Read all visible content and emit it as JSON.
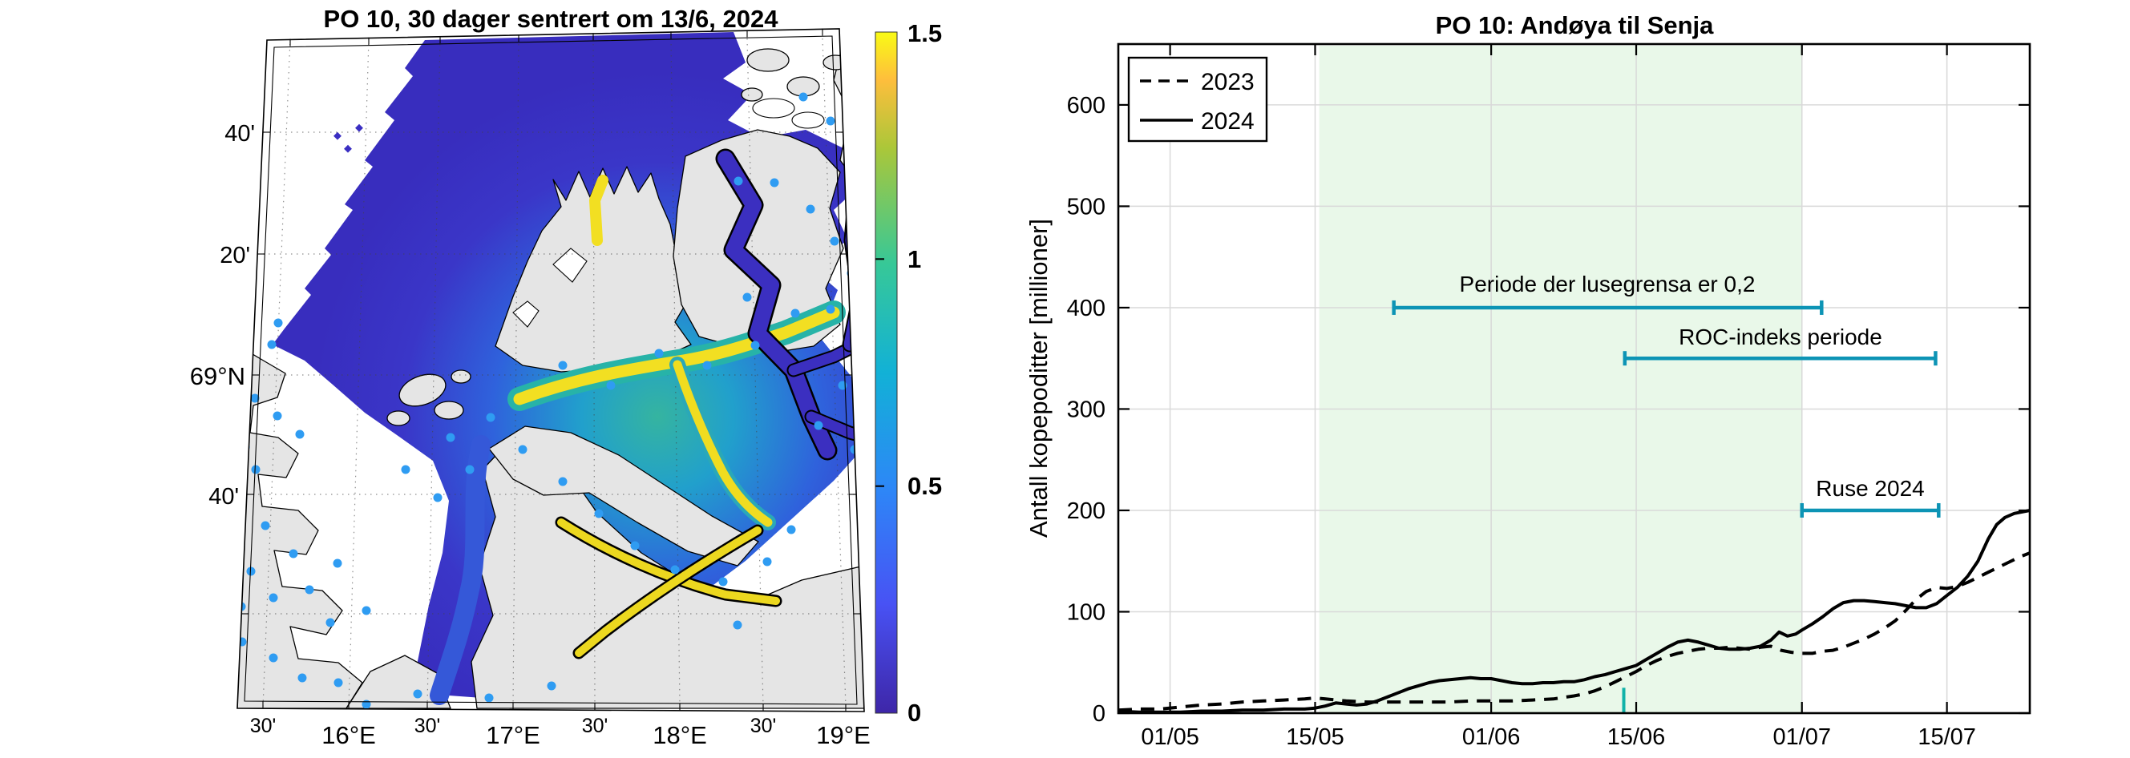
{
  "figure": {
    "left_panel": {
      "title": "PO 10, 30 dager sentrert om 13/6, 2024",
      "lat_tick_labels": [
        "40'",
        "20'",
        "69°N",
        "40'"
      ],
      "lon_tick_labels": [
        "30'",
        "16°E",
        "30'",
        "17°E",
        "30'",
        "18°E",
        "30'",
        "19°E"
      ],
      "colorbar": {
        "min": 0,
        "max": 1.5,
        "tick_labels": [
          "1.5",
          "1",
          "0.5",
          "0"
        ],
        "colormap": "parula"
      },
      "land_color": "#e5e5e5",
      "deep_water_color": "#3a2ec2",
      "hotspot_color": "#f2df22",
      "farm_marker_color": "#2f9cf2"
    },
    "right_panel": {
      "title": "PO 10: Andøya til Senja"
    }
  },
  "chart_data": {
    "type": "line",
    "title": "PO 10: Andøya til Senja",
    "xlabel": "",
    "ylabel": "Antall kopepoditter [millioner]",
    "x_day0_date": "26/04",
    "xlim_days": [
      0,
      88
    ],
    "x_tick_days": [
      5,
      19,
      36,
      50,
      66,
      80
    ],
    "x_tick_labels": [
      "01/05",
      "15/05",
      "01/06",
      "15/06",
      "01/07",
      "15/07"
    ],
    "ylim": [
      0,
      660
    ],
    "y_ticks": [
      0,
      100,
      200,
      300,
      400,
      500,
      600
    ],
    "grid": true,
    "legend_position": "top-left",
    "shaded_region": {
      "x_days": [
        19.4,
        66
      ],
      "color": "#e9f8e9"
    },
    "annotation_color": "#0d94b5",
    "marker_tick": {
      "x_day": 48.8,
      "y_from": 0,
      "y_to": 25,
      "color": "#10b2a8"
    },
    "annotations": [
      {
        "label": "Periode der lusegrensa er 0,2",
        "y": 400,
        "x_days": [
          26.6,
          67.9
        ]
      },
      {
        "label": "ROC-indeks periode",
        "y": 350,
        "x_days": [
          48.9,
          78.9
        ]
      },
      {
        "label": "Ruse 2024",
        "y": 200,
        "x_days": [
          66.0,
          79.2
        ]
      }
    ],
    "series": [
      {
        "name": "2023",
        "style": "dashed",
        "color": "#000000",
        "points": [
          [
            0,
            3
          ],
          [
            2,
            4
          ],
          [
            4,
            4
          ],
          [
            6,
            6
          ],
          [
            8,
            8
          ],
          [
            10,
            9
          ],
          [
            12,
            11
          ],
          [
            14,
            12
          ],
          [
            16,
            13
          ],
          [
            18,
            14
          ],
          [
            19,
            15
          ],
          [
            20,
            14
          ],
          [
            21,
            13
          ],
          [
            22,
            12
          ],
          [
            24,
            11
          ],
          [
            26,
            11
          ],
          [
            28,
            11
          ],
          [
            30,
            11
          ],
          [
            32,
            11
          ],
          [
            34,
            12
          ],
          [
            36,
            12
          ],
          [
            38,
            12
          ],
          [
            40,
            13
          ],
          [
            42,
            14
          ],
          [
            44,
            17
          ],
          [
            45,
            19
          ],
          [
            46,
            22
          ],
          [
            47,
            26
          ],
          [
            48,
            31
          ],
          [
            49,
            36
          ],
          [
            50,
            41
          ],
          [
            51,
            47
          ],
          [
            52,
            52
          ],
          [
            53,
            56
          ],
          [
            54,
            59
          ],
          [
            55,
            61
          ],
          [
            56,
            63
          ],
          [
            57,
            64
          ],
          [
            58,
            64
          ],
          [
            59,
            65
          ],
          [
            60,
            64
          ],
          [
            61,
            63
          ],
          [
            62,
            65
          ],
          [
            63,
            66
          ],
          [
            64,
            62
          ],
          [
            65,
            60
          ],
          [
            66,
            59
          ],
          [
            67,
            59
          ],
          [
            68,
            61
          ],
          [
            69,
            62
          ],
          [
            70,
            65
          ],
          [
            71,
            69
          ],
          [
            72,
            73
          ],
          [
            73,
            78
          ],
          [
            74,
            84
          ],
          [
            75,
            91
          ],
          [
            76,
            101
          ],
          [
            77,
            112
          ],
          [
            78,
            120
          ],
          [
            79,
            124
          ],
          [
            80,
            123
          ],
          [
            81,
            125
          ],
          [
            82,
            129
          ],
          [
            83,
            134
          ],
          [
            84,
            139
          ],
          [
            85,
            144
          ],
          [
            86,
            149
          ],
          [
            87,
            154
          ],
          [
            88,
            158
          ]
        ]
      },
      {
        "name": "2024",
        "style": "solid",
        "color": "#000000",
        "points": [
          [
            0,
            2
          ],
          [
            2,
            1
          ],
          [
            4,
            1
          ],
          [
            6,
            1
          ],
          [
            8,
            2
          ],
          [
            10,
            2
          ],
          [
            12,
            3
          ],
          [
            14,
            3
          ],
          [
            16,
            4
          ],
          [
            18,
            4
          ],
          [
            19,
            5
          ],
          [
            20,
            7
          ],
          [
            21,
            10
          ],
          [
            22,
            9
          ],
          [
            23,
            8
          ],
          [
            24,
            9
          ],
          [
            25,
            12
          ],
          [
            26,
            16
          ],
          [
            27,
            20
          ],
          [
            28,
            24
          ],
          [
            29,
            27
          ],
          [
            30,
            30
          ],
          [
            31,
            32
          ],
          [
            32,
            33
          ],
          [
            33,
            34
          ],
          [
            34,
            35
          ],
          [
            35,
            34
          ],
          [
            36,
            34
          ],
          [
            37,
            32
          ],
          [
            38,
            30
          ],
          [
            39,
            29
          ],
          [
            40,
            29
          ],
          [
            41,
            30
          ],
          [
            42,
            30
          ],
          [
            43,
            31
          ],
          [
            44,
            31
          ],
          [
            45,
            33
          ],
          [
            46,
            36
          ],
          [
            47,
            38
          ],
          [
            48,
            41
          ],
          [
            49,
            44
          ],
          [
            50,
            47
          ],
          [
            51,
            53
          ],
          [
            52,
            59
          ],
          [
            53,
            65
          ],
          [
            54,
            70
          ],
          [
            55,
            72
          ],
          [
            56,
            70
          ],
          [
            57,
            67
          ],
          [
            58,
            64
          ],
          [
            59,
            63
          ],
          [
            60,
            63
          ],
          [
            61,
            64
          ],
          [
            62,
            66
          ],
          [
            63,
            72
          ],
          [
            63.8,
            80
          ],
          [
            64.6,
            76
          ],
          [
            65.4,
            78
          ],
          [
            66,
            82
          ],
          [
            67,
            88
          ],
          [
            68,
            95
          ],
          [
            69,
            103
          ],
          [
            70,
            109
          ],
          [
            71,
            111
          ],
          [
            72,
            111
          ],
          [
            73,
            110
          ],
          [
            74,
            109
          ],
          [
            75,
            108
          ],
          [
            76,
            106
          ],
          [
            77,
            104
          ],
          [
            78,
            104
          ],
          [
            79,
            108
          ],
          [
            80,
            116
          ],
          [
            81,
            124
          ],
          [
            82,
            135
          ],
          [
            83,
            150
          ],
          [
            84,
            172
          ],
          [
            84.8,
            186
          ],
          [
            85.6,
            193
          ],
          [
            86.5,
            197
          ],
          [
            88,
            200
          ]
        ]
      }
    ]
  }
}
